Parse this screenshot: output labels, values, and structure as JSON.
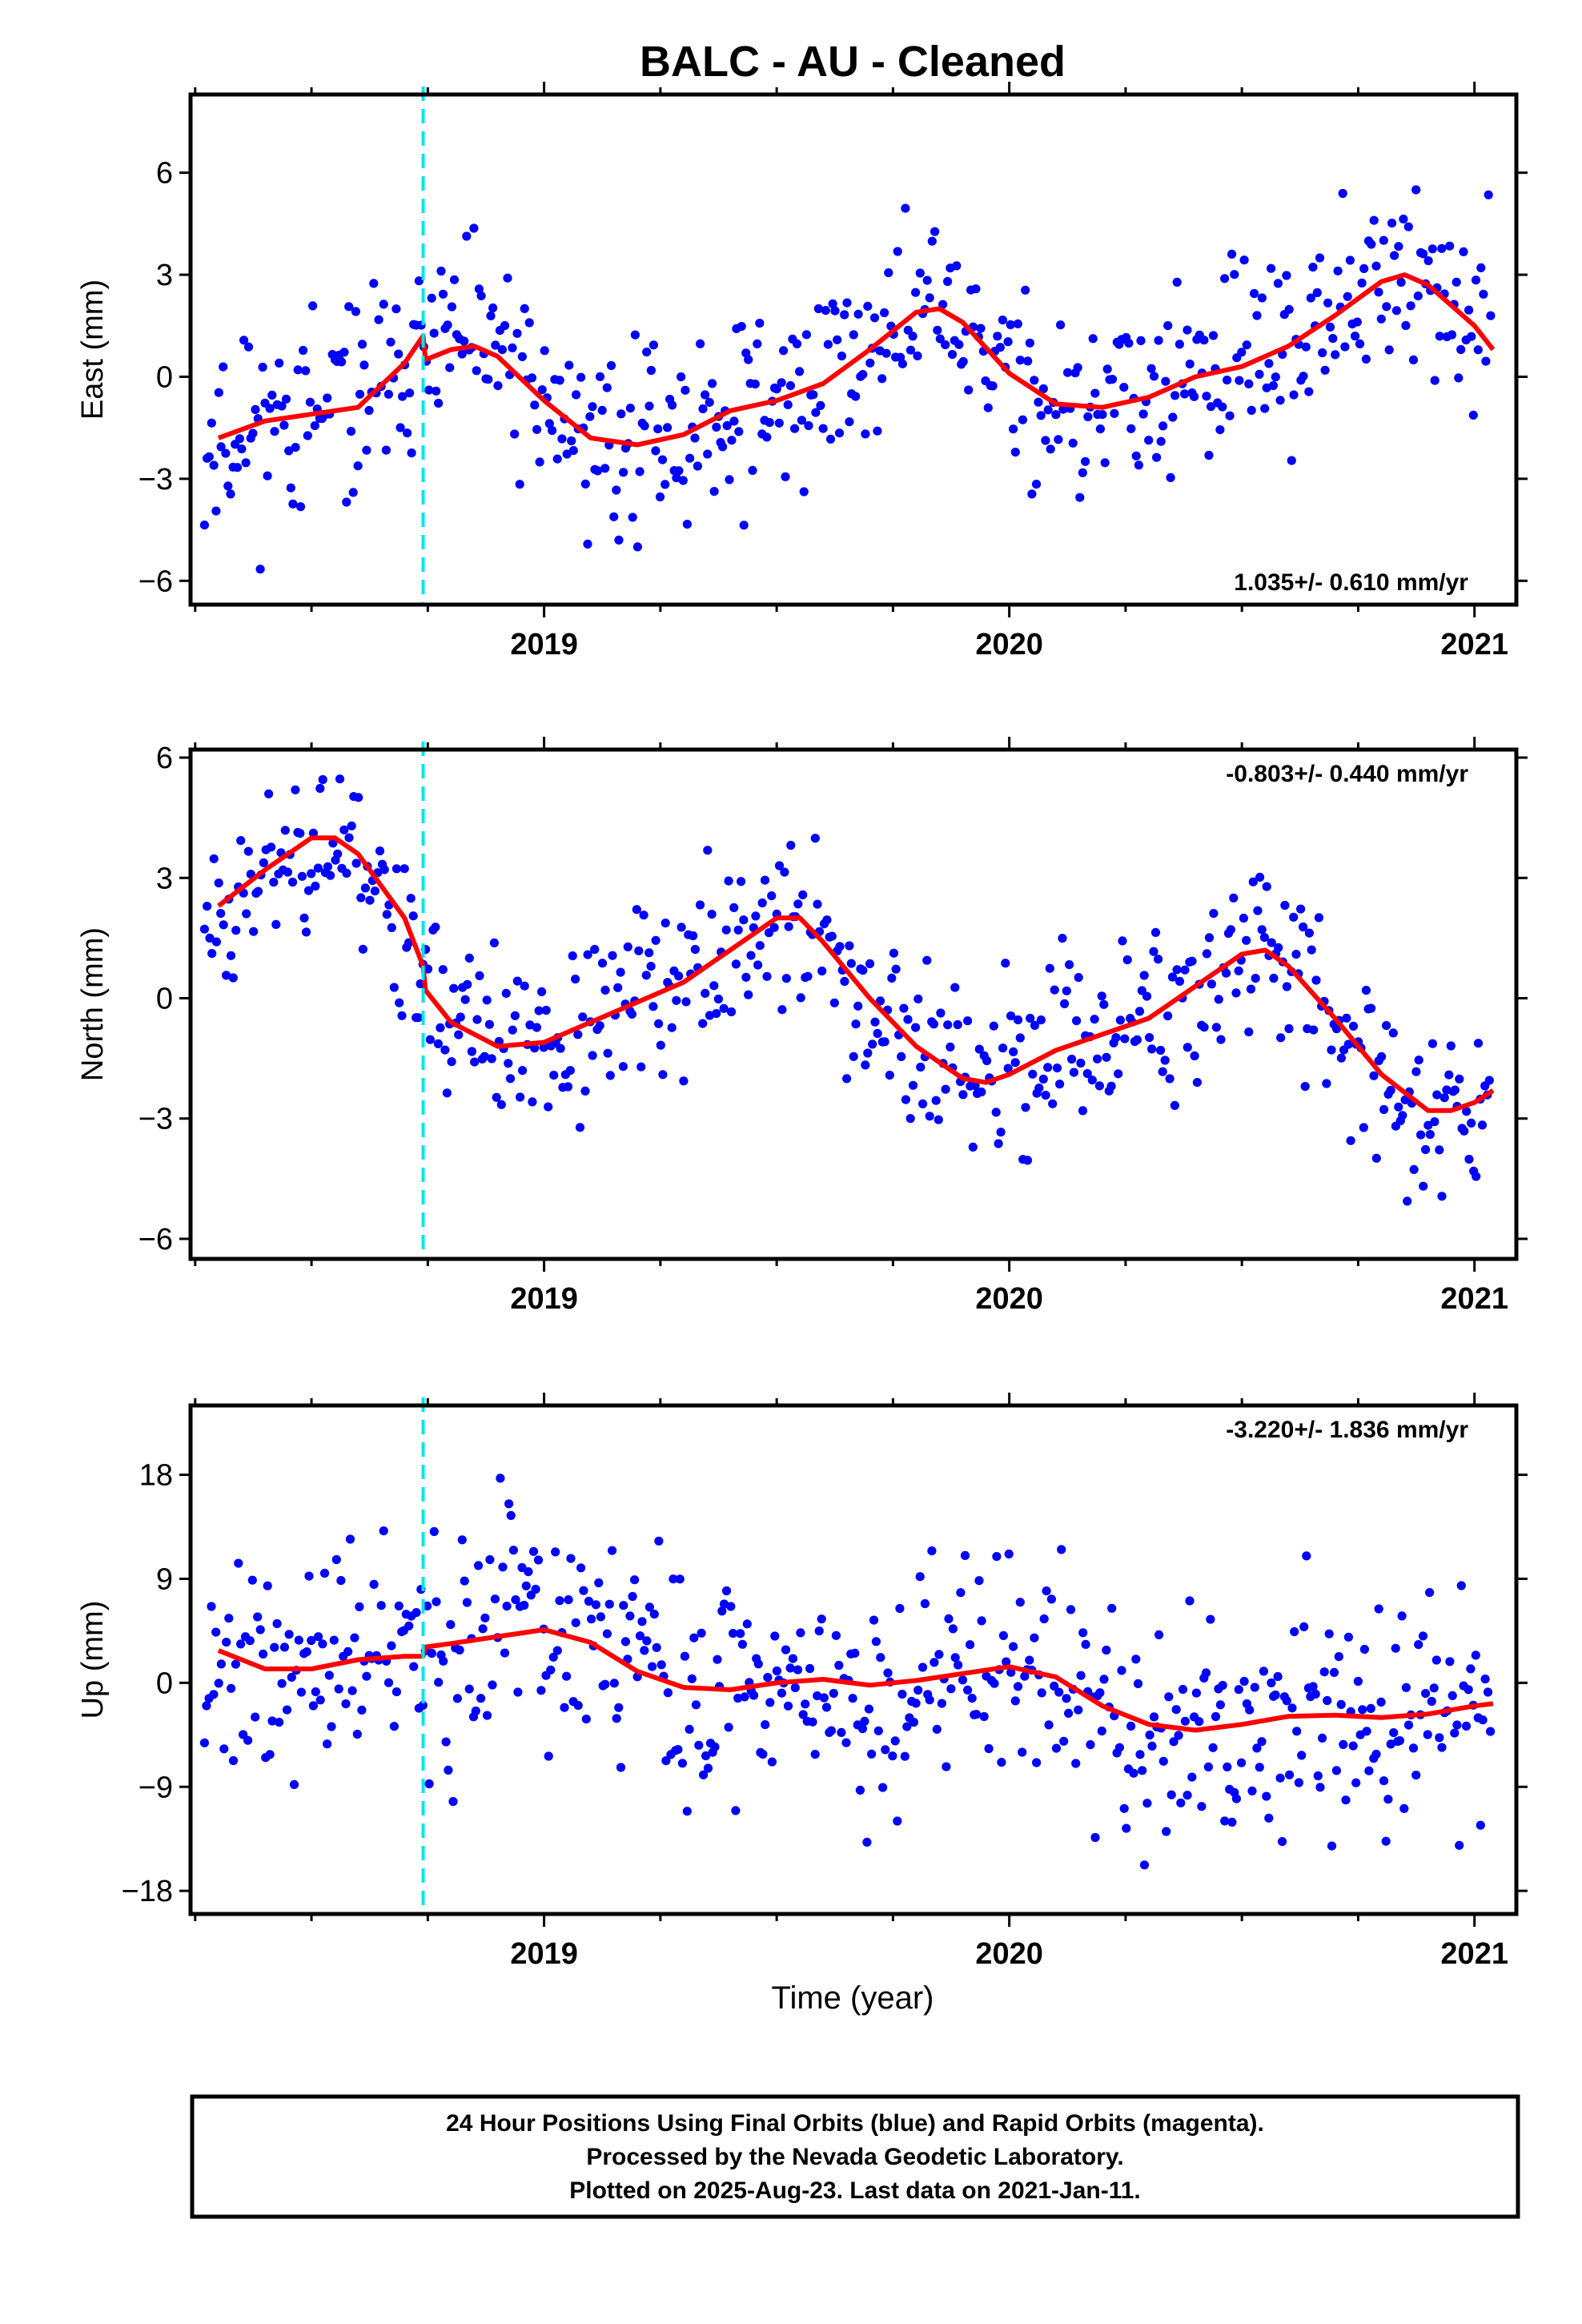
{
  "chart_data": {
    "type": "scatter",
    "title": "BALC  - AU - Cleaned",
    "xlabel": "Time (year)",
    "xlim": [
      2018.24,
      2021.09
    ],
    "x_tick_labels": [
      "2019",
      "2020",
      "2021"
    ],
    "x_major_ticks": [
      2019,
      2020,
      2021
    ],
    "x_minor_step": 0.25,
    "event_line_x": 2018.74,
    "colors": {
      "points": "#0000ff",
      "fit": "#ff0000",
      "event_line": "#00e5ee",
      "frame": "#000000"
    },
    "legend": "none",
    "grid": false,
    "panels": [
      {
        "name": "east",
        "ylabel": "East (mm)",
        "ylim": [
          -6.7,
          8.3
        ],
        "yticks": [
          -6,
          -3,
          0,
          3,
          6
        ],
        "ytick_labels": [
          "−6",
          "−3",
          "0",
          "3",
          "6"
        ],
        "rate_text": "1.035+/- 0.610 mm/yr",
        "rate_position": "bottom-right",
        "fit": [
          [
            2018.3,
            -1.8
          ],
          [
            2018.4,
            -1.3
          ],
          [
            2018.5,
            -1.1
          ],
          [
            2018.6,
            -0.9
          ],
          [
            2018.7,
            0.4
          ],
          [
            2018.74,
            1.2
          ],
          [
            2018.745,
            0.5
          ],
          [
            2018.8,
            0.8
          ],
          [
            2018.85,
            0.9
          ],
          [
            2018.9,
            0.6
          ],
          [
            2019.0,
            -0.7
          ],
          [
            2019.1,
            -1.8
          ],
          [
            2019.2,
            -2.0
          ],
          [
            2019.3,
            -1.7
          ],
          [
            2019.4,
            -1.0
          ],
          [
            2019.5,
            -0.7
          ],
          [
            2019.6,
            -0.2
          ],
          [
            2019.7,
            0.8
          ],
          [
            2019.8,
            1.9
          ],
          [
            2019.85,
            2.0
          ],
          [
            2019.9,
            1.6
          ],
          [
            2020.0,
            0.1
          ],
          [
            2020.1,
            -0.8
          ],
          [
            2020.2,
            -0.9
          ],
          [
            2020.3,
            -0.6
          ],
          [
            2020.4,
            0.0
          ],
          [
            2020.5,
            0.3
          ],
          [
            2020.6,
            0.9
          ],
          [
            2020.7,
            1.8
          ],
          [
            2020.8,
            2.8
          ],
          [
            2020.85,
            3.0
          ],
          [
            2020.9,
            2.7
          ],
          [
            2021.0,
            1.5
          ],
          [
            2021.04,
            0.8
          ]
        ],
        "seed": 11,
        "noise_sd": 1.4
      },
      {
        "name": "north",
        "ylabel": "North (mm)",
        "ylim": [
          -6.5,
          6.2
        ],
        "yticks": [
          -6,
          -3,
          0,
          3,
          6
        ],
        "ytick_labels": [
          "−6",
          "−3",
          "0",
          "3",
          "6"
        ],
        "rate_text": "-0.803+/- 0.440 mm/yr",
        "rate_position": "top-right",
        "fit": [
          [
            2018.3,
            2.3
          ],
          [
            2018.4,
            3.2
          ],
          [
            2018.5,
            4.0
          ],
          [
            2018.55,
            4.0
          ],
          [
            2018.6,
            3.6
          ],
          [
            2018.7,
            2.0
          ],
          [
            2018.74,
            0.8
          ],
          [
            2018.745,
            0.2
          ],
          [
            2018.8,
            -0.6
          ],
          [
            2018.9,
            -1.2
          ],
          [
            2019.0,
            -1.1
          ],
          [
            2019.1,
            -0.6
          ],
          [
            2019.2,
            -0.1
          ],
          [
            2019.3,
            0.4
          ],
          [
            2019.4,
            1.2
          ],
          [
            2019.5,
            2.0
          ],
          [
            2019.55,
            2.0
          ],
          [
            2019.6,
            1.4
          ],
          [
            2019.7,
            0.0
          ],
          [
            2019.8,
            -1.2
          ],
          [
            2019.9,
            -2.0
          ],
          [
            2019.95,
            -2.1
          ],
          [
            2020.0,
            -1.9
          ],
          [
            2020.1,
            -1.3
          ],
          [
            2020.2,
            -0.9
          ],
          [
            2020.3,
            -0.5
          ],
          [
            2020.4,
            0.3
          ],
          [
            2020.5,
            1.1
          ],
          [
            2020.55,
            1.2
          ],
          [
            2020.6,
            0.8
          ],
          [
            2020.7,
            -0.5
          ],
          [
            2020.8,
            -1.9
          ],
          [
            2020.9,
            -2.8
          ],
          [
            2020.95,
            -2.8
          ],
          [
            2021.0,
            -2.6
          ],
          [
            2021.04,
            -2.3
          ]
        ],
        "seed": 23,
        "noise_sd": 1.1
      },
      {
        "name": "up",
        "ylabel": "Up (mm)",
        "ylim": [
          -20,
          24
        ],
        "yticks": [
          -18,
          -9,
          0,
          9,
          18
        ],
        "ytick_labels": [
          "−18",
          "−9",
          "0",
          "9",
          "18"
        ],
        "rate_text": "-3.220+/- 1.836 mm/yr",
        "rate_position": "top-right",
        "fit": [
          [
            2018.3,
            2.8
          ],
          [
            2018.4,
            1.2
          ],
          [
            2018.5,
            1.2
          ],
          [
            2018.6,
            2.0
          ],
          [
            2018.7,
            2.3
          ],
          [
            2018.74,
            2.3
          ],
          [
            2018.745,
            3.1
          ],
          [
            2018.8,
            3.4
          ],
          [
            2018.9,
            4.0
          ],
          [
            2019.0,
            4.6
          ],
          [
            2019.1,
            3.5
          ],
          [
            2019.2,
            1.0
          ],
          [
            2019.3,
            -0.4
          ],
          [
            2019.4,
            -0.6
          ],
          [
            2019.5,
            0.0
          ],
          [
            2019.6,
            0.3
          ],
          [
            2019.7,
            -0.2
          ],
          [
            2019.8,
            0.2
          ],
          [
            2019.9,
            0.8
          ],
          [
            2020.0,
            1.4
          ],
          [
            2020.1,
            0.5
          ],
          [
            2020.2,
            -2.0
          ],
          [
            2020.3,
            -3.6
          ],
          [
            2020.4,
            -4.1
          ],
          [
            2020.5,
            -3.6
          ],
          [
            2020.6,
            -2.9
          ],
          [
            2020.7,
            -2.8
          ],
          [
            2020.8,
            -3.0
          ],
          [
            2020.9,
            -2.7
          ],
          [
            2021.0,
            -2.0
          ],
          [
            2021.04,
            -1.8
          ]
        ],
        "seed": 37,
        "noise_sd": 5.0
      }
    ]
  },
  "footer": {
    "line1": "24 Hour Positions Using Final Orbits (blue) and Rapid Orbits (magenta).",
    "line2": "Processed by the Nevada Geodetic Laboratory.",
    "line3": "Plotted on 2025-Aug-23. Last data on 2021-Jan-11."
  }
}
